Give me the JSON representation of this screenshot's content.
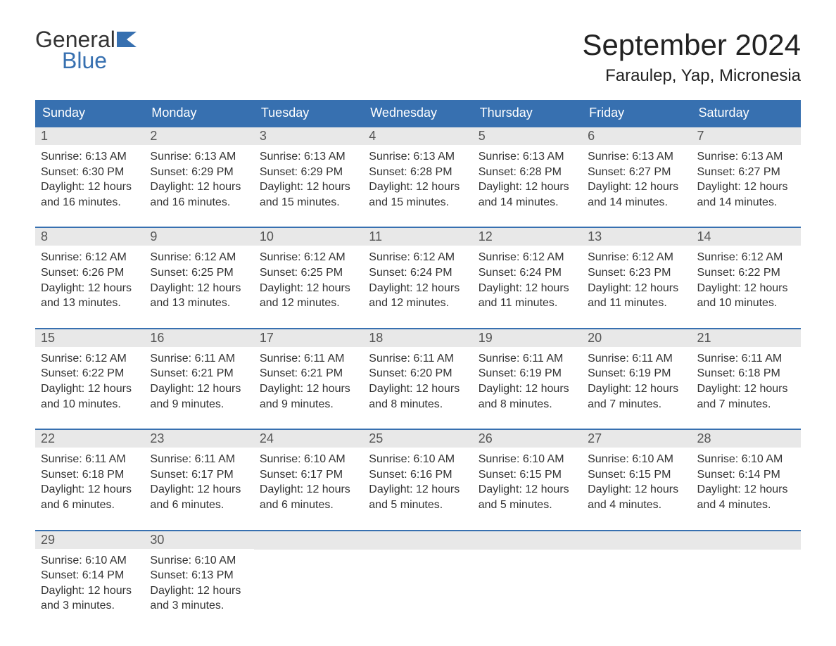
{
  "logo": {
    "line1": "General",
    "line2": "Blue",
    "text_color": "#333333",
    "blue_color": "#3770b0"
  },
  "title": "September 2024",
  "location": "Faraulep, Yap, Micronesia",
  "colors": {
    "header_bg": "#3770b0",
    "header_text": "#ffffff",
    "daynum_bg": "#e8e8e8",
    "daynum_text": "#555555",
    "body_text": "#333333",
    "row_border": "#3770b0",
    "page_bg": "#ffffff"
  },
  "weekdays": [
    "Sunday",
    "Monday",
    "Tuesday",
    "Wednesday",
    "Thursday",
    "Friday",
    "Saturday"
  ],
  "weeks": [
    [
      {
        "day": "1",
        "sunrise": "Sunrise: 6:13 AM",
        "sunset": "Sunset: 6:30 PM",
        "daylight1": "Daylight: 12 hours",
        "daylight2": "and 16 minutes."
      },
      {
        "day": "2",
        "sunrise": "Sunrise: 6:13 AM",
        "sunset": "Sunset: 6:29 PM",
        "daylight1": "Daylight: 12 hours",
        "daylight2": "and 16 minutes."
      },
      {
        "day": "3",
        "sunrise": "Sunrise: 6:13 AM",
        "sunset": "Sunset: 6:29 PM",
        "daylight1": "Daylight: 12 hours",
        "daylight2": "and 15 minutes."
      },
      {
        "day": "4",
        "sunrise": "Sunrise: 6:13 AM",
        "sunset": "Sunset: 6:28 PM",
        "daylight1": "Daylight: 12 hours",
        "daylight2": "and 15 minutes."
      },
      {
        "day": "5",
        "sunrise": "Sunrise: 6:13 AM",
        "sunset": "Sunset: 6:28 PM",
        "daylight1": "Daylight: 12 hours",
        "daylight2": "and 14 minutes."
      },
      {
        "day": "6",
        "sunrise": "Sunrise: 6:13 AM",
        "sunset": "Sunset: 6:27 PM",
        "daylight1": "Daylight: 12 hours",
        "daylight2": "and 14 minutes."
      },
      {
        "day": "7",
        "sunrise": "Sunrise: 6:13 AM",
        "sunset": "Sunset: 6:27 PM",
        "daylight1": "Daylight: 12 hours",
        "daylight2": "and 14 minutes."
      }
    ],
    [
      {
        "day": "8",
        "sunrise": "Sunrise: 6:12 AM",
        "sunset": "Sunset: 6:26 PM",
        "daylight1": "Daylight: 12 hours",
        "daylight2": "and 13 minutes."
      },
      {
        "day": "9",
        "sunrise": "Sunrise: 6:12 AM",
        "sunset": "Sunset: 6:25 PM",
        "daylight1": "Daylight: 12 hours",
        "daylight2": "and 13 minutes."
      },
      {
        "day": "10",
        "sunrise": "Sunrise: 6:12 AM",
        "sunset": "Sunset: 6:25 PM",
        "daylight1": "Daylight: 12 hours",
        "daylight2": "and 12 minutes."
      },
      {
        "day": "11",
        "sunrise": "Sunrise: 6:12 AM",
        "sunset": "Sunset: 6:24 PM",
        "daylight1": "Daylight: 12 hours",
        "daylight2": "and 12 minutes."
      },
      {
        "day": "12",
        "sunrise": "Sunrise: 6:12 AM",
        "sunset": "Sunset: 6:24 PM",
        "daylight1": "Daylight: 12 hours",
        "daylight2": "and 11 minutes."
      },
      {
        "day": "13",
        "sunrise": "Sunrise: 6:12 AM",
        "sunset": "Sunset: 6:23 PM",
        "daylight1": "Daylight: 12 hours",
        "daylight2": "and 11 minutes."
      },
      {
        "day": "14",
        "sunrise": "Sunrise: 6:12 AM",
        "sunset": "Sunset: 6:22 PM",
        "daylight1": "Daylight: 12 hours",
        "daylight2": "and 10 minutes."
      }
    ],
    [
      {
        "day": "15",
        "sunrise": "Sunrise: 6:12 AM",
        "sunset": "Sunset: 6:22 PM",
        "daylight1": "Daylight: 12 hours",
        "daylight2": "and 10 minutes."
      },
      {
        "day": "16",
        "sunrise": "Sunrise: 6:11 AM",
        "sunset": "Sunset: 6:21 PM",
        "daylight1": "Daylight: 12 hours",
        "daylight2": "and 9 minutes."
      },
      {
        "day": "17",
        "sunrise": "Sunrise: 6:11 AM",
        "sunset": "Sunset: 6:21 PM",
        "daylight1": "Daylight: 12 hours",
        "daylight2": "and 9 minutes."
      },
      {
        "day": "18",
        "sunrise": "Sunrise: 6:11 AM",
        "sunset": "Sunset: 6:20 PM",
        "daylight1": "Daylight: 12 hours",
        "daylight2": "and 8 minutes."
      },
      {
        "day": "19",
        "sunrise": "Sunrise: 6:11 AM",
        "sunset": "Sunset: 6:19 PM",
        "daylight1": "Daylight: 12 hours",
        "daylight2": "and 8 minutes."
      },
      {
        "day": "20",
        "sunrise": "Sunrise: 6:11 AM",
        "sunset": "Sunset: 6:19 PM",
        "daylight1": "Daylight: 12 hours",
        "daylight2": "and 7 minutes."
      },
      {
        "day": "21",
        "sunrise": "Sunrise: 6:11 AM",
        "sunset": "Sunset: 6:18 PM",
        "daylight1": "Daylight: 12 hours",
        "daylight2": "and 7 minutes."
      }
    ],
    [
      {
        "day": "22",
        "sunrise": "Sunrise: 6:11 AM",
        "sunset": "Sunset: 6:18 PM",
        "daylight1": "Daylight: 12 hours",
        "daylight2": "and 6 minutes."
      },
      {
        "day": "23",
        "sunrise": "Sunrise: 6:11 AM",
        "sunset": "Sunset: 6:17 PM",
        "daylight1": "Daylight: 12 hours",
        "daylight2": "and 6 minutes."
      },
      {
        "day": "24",
        "sunrise": "Sunrise: 6:10 AM",
        "sunset": "Sunset: 6:17 PM",
        "daylight1": "Daylight: 12 hours",
        "daylight2": "and 6 minutes."
      },
      {
        "day": "25",
        "sunrise": "Sunrise: 6:10 AM",
        "sunset": "Sunset: 6:16 PM",
        "daylight1": "Daylight: 12 hours",
        "daylight2": "and 5 minutes."
      },
      {
        "day": "26",
        "sunrise": "Sunrise: 6:10 AM",
        "sunset": "Sunset: 6:15 PM",
        "daylight1": "Daylight: 12 hours",
        "daylight2": "and 5 minutes."
      },
      {
        "day": "27",
        "sunrise": "Sunrise: 6:10 AM",
        "sunset": "Sunset: 6:15 PM",
        "daylight1": "Daylight: 12 hours",
        "daylight2": "and 4 minutes."
      },
      {
        "day": "28",
        "sunrise": "Sunrise: 6:10 AM",
        "sunset": "Sunset: 6:14 PM",
        "daylight1": "Daylight: 12 hours",
        "daylight2": "and 4 minutes."
      }
    ],
    [
      {
        "day": "29",
        "sunrise": "Sunrise: 6:10 AM",
        "sunset": "Sunset: 6:14 PM",
        "daylight1": "Daylight: 12 hours",
        "daylight2": "and 3 minutes."
      },
      {
        "day": "30",
        "sunrise": "Sunrise: 6:10 AM",
        "sunset": "Sunset: 6:13 PM",
        "daylight1": "Daylight: 12 hours",
        "daylight2": "and 3 minutes."
      },
      {
        "empty": true
      },
      {
        "empty": true
      },
      {
        "empty": true
      },
      {
        "empty": true
      },
      {
        "empty": true
      }
    ]
  ]
}
